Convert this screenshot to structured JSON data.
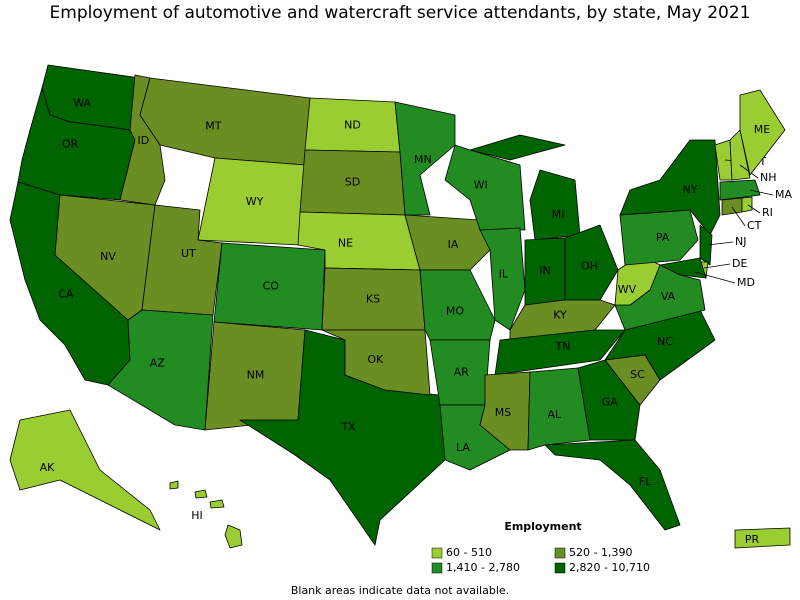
{
  "title": "Employment of automotive and watercraft service attendants, by state, May 2021",
  "legend": {
    "title": "Employment",
    "items": [
      {
        "label": "60 - 510",
        "color": "#9ACD32"
      },
      {
        "label": "520 - 1,390",
        "color": "#6B8E23"
      },
      {
        "label": "1,410 - 2,780",
        "color": "#228B22"
      },
      {
        "label": "2,820 - 10,710",
        "color": "#006400"
      }
    ]
  },
  "footnote": "Blank areas indicate data not available.",
  "states": [
    {
      "label": "WA",
      "color": "#006400"
    },
    {
      "label": "OR",
      "color": "#006400"
    },
    {
      "label": "CA",
      "color": "#006400"
    },
    {
      "label": "NV",
      "color": "#6B8E23"
    },
    {
      "label": "ID",
      "color": "#6B8E23"
    },
    {
      "label": "MT",
      "color": "#6B8E23"
    },
    {
      "label": "WY",
      "color": "#9ACD32"
    },
    {
      "label": "UT",
      "color": "#6B8E23"
    },
    {
      "label": "AZ",
      "color": "#228B22"
    },
    {
      "label": "CO",
      "color": "#228B22"
    },
    {
      "label": "NM",
      "color": "#6B8E23"
    },
    {
      "label": "TX",
      "color": "#006400"
    },
    {
      "label": "ND",
      "color": "#9ACD32"
    },
    {
      "label": "SD",
      "color": "#6B8E23"
    },
    {
      "label": "NE",
      "color": "#9ACD32"
    },
    {
      "label": "KS",
      "color": "#6B8E23"
    },
    {
      "label": "OK",
      "color": "#6B8E23"
    },
    {
      "label": "MN",
      "color": "#228B22"
    },
    {
      "label": "IA",
      "color": "#6B8E23"
    },
    {
      "label": "MO",
      "color": "#228B22"
    },
    {
      "label": "AR",
      "color": "#228B22"
    },
    {
      "label": "LA",
      "color": "#228B22"
    },
    {
      "label": "WI",
      "color": "#228B22"
    },
    {
      "label": "IL",
      "color": "#228B22"
    },
    {
      "label": "MI",
      "color": "#006400"
    },
    {
      "label": "IN",
      "color": "#006400"
    },
    {
      "label": "OH",
      "color": "#006400"
    },
    {
      "label": "KY",
      "color": "#6B8E23"
    },
    {
      "label": "TN",
      "color": "#006400"
    },
    {
      "label": "MS",
      "color": "#6B8E23"
    },
    {
      "label": "AL",
      "color": "#228B22"
    },
    {
      "label": "GA",
      "color": "#006400"
    },
    {
      "label": "FL",
      "color": "#006400"
    },
    {
      "label": "SC",
      "color": "#6B8E23"
    },
    {
      "label": "NC",
      "color": "#006400"
    },
    {
      "label": "VA",
      "color": "#228B22"
    },
    {
      "label": "WV",
      "color": "#9ACD32"
    },
    {
      "label": "PA",
      "color": "#228B22"
    },
    {
      "label": "NY",
      "color": "#006400"
    },
    {
      "label": "NJ",
      "color": "#006400"
    },
    {
      "label": "DE",
      "color": "#9ACD32"
    },
    {
      "label": "MD",
      "color": "#006400"
    },
    {
      "label": "VT",
      "color": "#9ACD32"
    },
    {
      "label": "NH",
      "color": "#9ACD32"
    },
    {
      "label": "ME",
      "color": "#9ACD32"
    },
    {
      "label": "MA",
      "color": "#228B22"
    },
    {
      "label": "CT",
      "color": "#6B8E23"
    },
    {
      "label": "RI",
      "color": "#9ACD32"
    },
    {
      "label": "AK",
      "color": "#9ACD32"
    },
    {
      "label": "HI",
      "color": "#9ACD32"
    },
    {
      "label": "PR",
      "color": "#9ACD32"
    }
  ]
}
